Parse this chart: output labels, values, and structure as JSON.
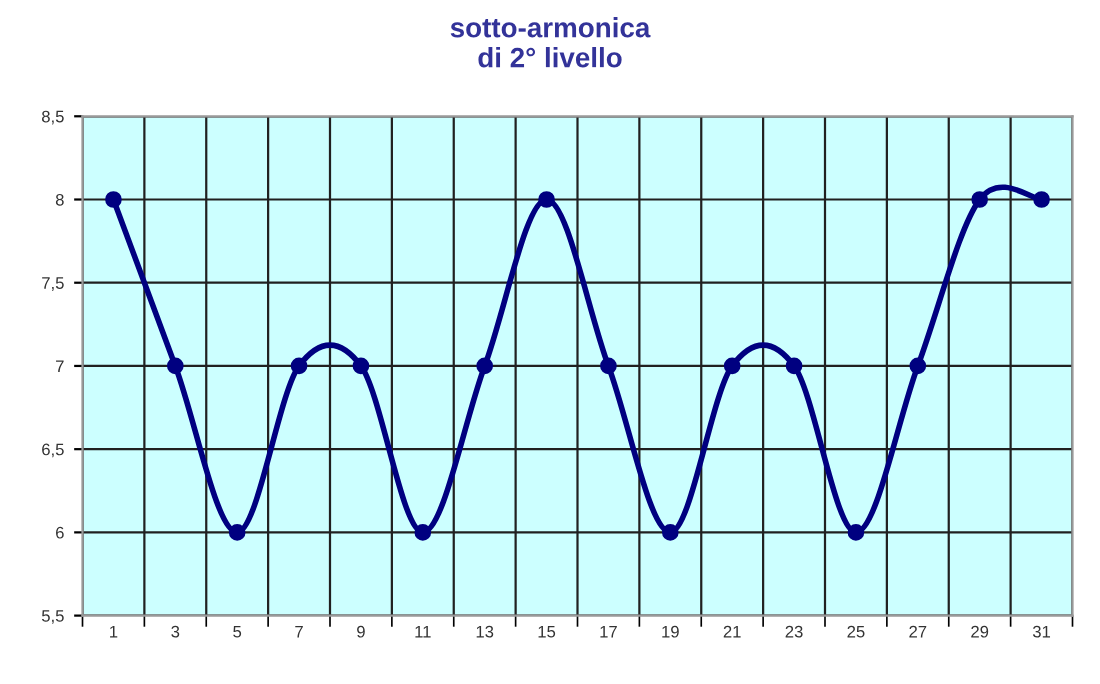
{
  "chart_data": {
    "type": "line",
    "title": "sotto-armonica\ndi 2° livello",
    "categories": [
      "1",
      "3",
      "5",
      "7",
      "9",
      "11",
      "13",
      "15",
      "17",
      "19",
      "21",
      "23",
      "25",
      "27",
      "29",
      "31"
    ],
    "series": [
      {
        "color": "#000080",
        "values": [
          8,
          7,
          6,
          7,
          7,
          6,
          7,
          8,
          7,
          6,
          7,
          7,
          6,
          7,
          8,
          8
        ]
      }
    ],
    "ylim": [
      5.5,
      8.5
    ],
    "yticks": [
      {
        "value": 5.5,
        "label": "5,5"
      },
      6,
      {
        "value": 6.5,
        "label": "6,5"
      },
      7,
      {
        "value": 7.5,
        "label": "7,5"
      },
      8,
      {
        "value": 8.5,
        "label": "8,5"
      }
    ],
    "grid": true,
    "marker": "circle",
    "line_style": "solid",
    "legend": false
  }
}
